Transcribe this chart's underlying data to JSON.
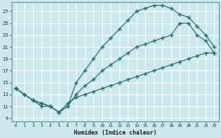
{
  "xlabel": "Humidex (Indice chaleur)",
  "bg_color": "#cce8ec",
  "grid_color": "#b8d8dc",
  "line_color": "#2a6e68",
  "xlim": [
    -0.5,
    23.5
  ],
  "ylim": [
    8.5,
    28.5
  ],
  "xticks": [
    0,
    1,
    2,
    3,
    4,
    5,
    6,
    7,
    8,
    9,
    10,
    11,
    12,
    13,
    14,
    15,
    16,
    17,
    18,
    19,
    20,
    21,
    22,
    23
  ],
  "yticks": [
    9,
    11,
    13,
    15,
    17,
    19,
    21,
    23,
    25,
    27
  ],
  "line1_x": [
    0,
    1,
    2,
    3,
    4,
    5,
    6,
    7,
    8,
    9,
    10,
    11,
    12,
    13,
    14,
    15,
    16,
    17,
    18,
    19,
    20,
    21,
    22,
    23
  ],
  "line1_y": [
    14,
    13,
    12,
    11,
    11,
    10,
    11,
    15,
    17,
    19,
    21,
    22.5,
    24,
    25.5,
    27,
    27.5,
    28,
    28,
    27.5,
    26.5,
    26,
    24.5,
    23,
    21
  ],
  "line2_x": [
    0,
    1,
    2,
    3,
    4,
    5,
    6,
    7,
    8,
    9,
    10,
    11,
    12,
    13,
    14,
    15,
    16,
    17,
    18,
    19,
    20,
    21,
    22,
    23
  ],
  "line2_y": [
    14,
    13,
    12,
    11.5,
    11,
    10,
    11,
    13,
    14.5,
    15.5,
    17,
    18,
    19,
    20,
    21,
    21.5,
    22,
    22.5,
    23,
    25,
    25,
    23,
    22,
    20
  ],
  "line3_x": [
    0,
    2,
    3,
    4,
    5,
    6,
    7,
    8,
    9,
    10,
    11,
    12,
    13,
    14,
    15,
    16,
    17,
    18,
    19,
    20,
    21,
    22,
    23
  ],
  "line3_y": [
    14,
    12,
    11.5,
    11,
    10,
    11.5,
    12.5,
    13,
    13.5,
    14,
    14.5,
    15,
    15.5,
    16,
    16.5,
    17,
    17.5,
    18,
    18.5,
    19,
    19.5,
    20,
    20
  ]
}
